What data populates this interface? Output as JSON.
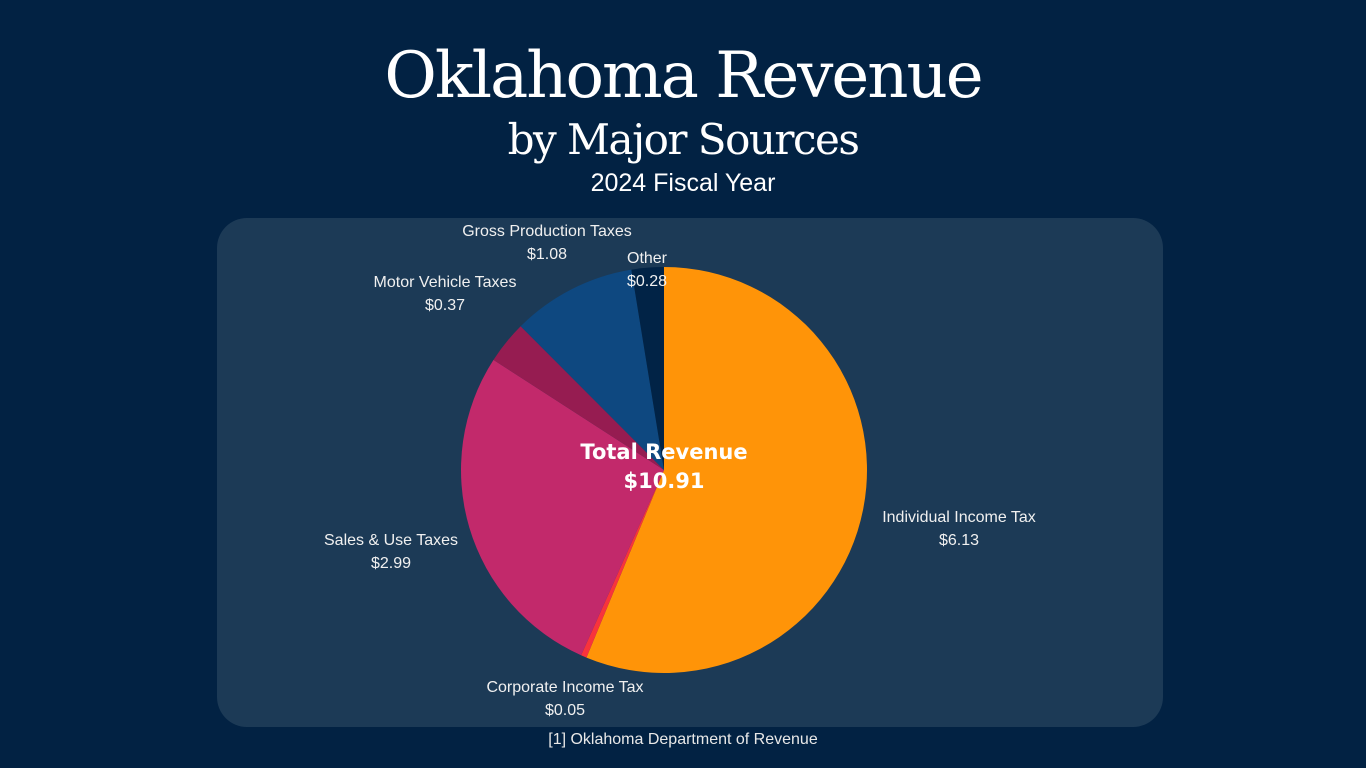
{
  "chart_data": {
    "type": "pie",
    "title": "Oklahoma Revenue",
    "subtitle": "by Major Sources",
    "period": "2024 Fiscal Year",
    "center_label": "Total Revenue",
    "center_value": "$10.91",
    "source": "[1] Oklahoma Department of Revenue",
    "slices": [
      {
        "label": "Individual Income Tax",
        "value": 6.13,
        "display": "$6.13",
        "color": "#ff9408"
      },
      {
        "label": "Corporate Income Tax",
        "value": 0.05,
        "display": "$0.05",
        "color": "#f8333c"
      },
      {
        "label": "Sales & Use Taxes",
        "value": 2.99,
        "display": "$2.99",
        "color": "#c2296b"
      },
      {
        "label": "Motor Vehicle Taxes",
        "value": 0.37,
        "display": "$0.37",
        "color": "#961c51"
      },
      {
        "label": "Gross Production Taxes",
        "value": 1.08,
        "display": "$1.08",
        "color": "#0e4880"
      },
      {
        "label": "Other",
        "value": 0.28,
        "display": "$0.28",
        "color": "#012346"
      }
    ]
  }
}
